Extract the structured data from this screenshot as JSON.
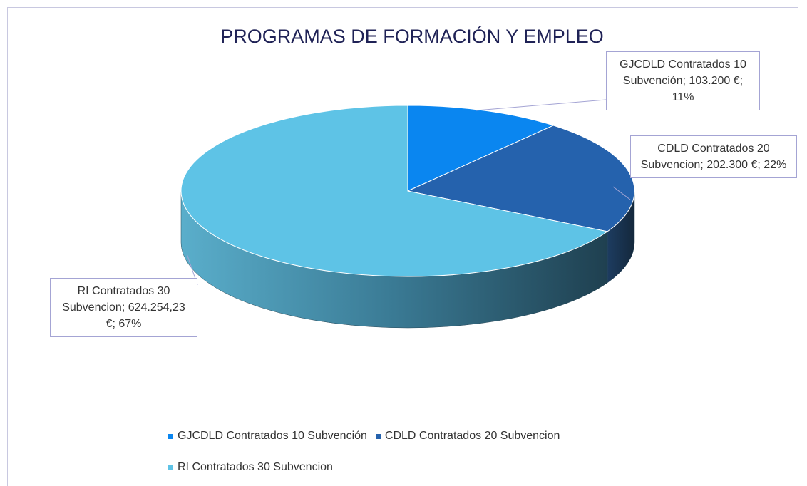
{
  "chart_data": {
    "type": "pie",
    "title": "PROGRAMAS DE FORMACIÓN Y EMPLEO",
    "categories": [
      "GJCDLD Contratados 10 Subvención",
      "CDLD Contratados 20 Subvencion",
      "RI Contratados 30 Subvencion"
    ],
    "values": [
      103200,
      202300,
      624254.23
    ],
    "value_labels": [
      "GJCDLD Contratados 10 Subvención; 103.200 €; 11%",
      "CDLD Contratados 20 Subvencion; 202.300 €; 22%",
      "RI Contratados 30 Subvencion; 624.254,23 €; 67%"
    ],
    "colors": [
      "#0a86f0",
      "#2562ad",
      "#5ec3e6"
    ],
    "legend": "bottom"
  }
}
